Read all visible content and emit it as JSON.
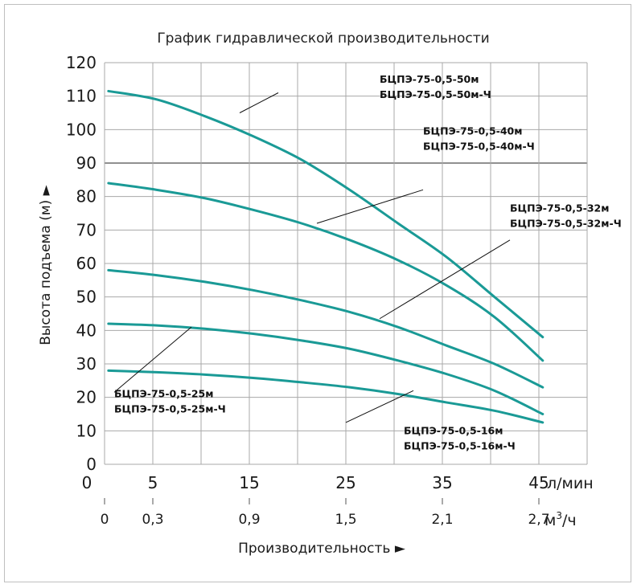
{
  "chart_data": {
    "type": "line",
    "title": "График гидравлической производительности",
    "ylabel": "Высота подъема (м) ►",
    "xlabel": "Производительность ►",
    "ylim": [
      0,
      120
    ],
    "xlim": [
      0,
      50
    ],
    "yticks": [
      "0",
      "10",
      "20",
      "30",
      "40",
      "50",
      "60",
      "70",
      "80",
      "90",
      "100",
      "110",
      "120"
    ],
    "xticks_lmin": [
      "0",
      "5",
      "15",
      "25",
      "35",
      "45"
    ],
    "xticks_m3h": [
      "0",
      "0,3",
      "0,9",
      "1,5",
      "2,1",
      "2,7"
    ],
    "unit_lmin": "л/мин",
    "unit_m3h_base": "м",
    "unit_m3h_sup": "3",
    "unit_m3h_tail": "/ч",
    "line_color": "#1a9a96",
    "highlight_y": 90,
    "series": [
      {
        "label_1": "БЦПЭ-75-0,5-50м",
        "label_2": "БЦПЭ-75-0,5-50м-Ч",
        "x": [
          0,
          5,
          10,
          15,
          20,
          25,
          30,
          35,
          40,
          45
        ],
        "y": [
          111.5,
          109,
          104,
          98,
          91,
          82,
          72,
          62,
          50,
          38
        ]
      },
      {
        "label_1": "БЦПЭ-75-0,5-40м",
        "label_2": "БЦПЭ-75-0,5-40м-Ч",
        "x": [
          0,
          5,
          10,
          15,
          20,
          25,
          30,
          35,
          40,
          45
        ],
        "y": [
          84,
          82,
          79.5,
          76,
          72,
          67,
          61,
          53.5,
          44,
          31
        ]
      },
      {
        "label_1": "БЦПЭ-75-0,5-32м",
        "label_2": "БЦПЭ-75-0,5-32м-Ч",
        "x": [
          0,
          5,
          10,
          15,
          20,
          25,
          30,
          35,
          40,
          45
        ],
        "y": [
          58,
          56.5,
          54.5,
          52,
          49,
          45.5,
          41,
          35.5,
          30,
          23
        ]
      },
      {
        "label_1": "БЦПЭ-75-0,5-25м",
        "label_2": "БЦПЭ-75-0,5-25м-Ч",
        "x": [
          0,
          5,
          10,
          15,
          20,
          25,
          30,
          35,
          40,
          45
        ],
        "y": [
          42,
          41.5,
          40.5,
          39,
          37,
          34.5,
          31,
          27,
          22,
          15
        ]
      },
      {
        "label_1": "БЦПЭ-75-0,5-16м",
        "label_2": "БЦПЭ-75-0,5-16м-Ч",
        "x": [
          0,
          5,
          10,
          15,
          20,
          25,
          30,
          35,
          40,
          45
        ],
        "y": [
          28,
          27.5,
          26.8,
          25.8,
          24.5,
          23,
          21,
          18.5,
          16,
          12.5
        ]
      }
    ]
  }
}
